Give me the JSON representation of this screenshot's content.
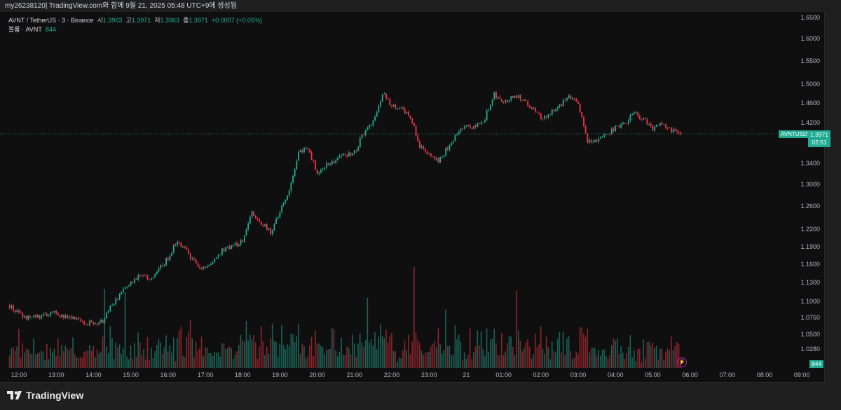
{
  "topbar": {
    "text": "my26238120| TradingView.com와 함께 9월 21, 2025 05:48 UTC+9에 생성됨"
  },
  "legend": {
    "symbol": "AVNT / TetherUS · 3 · Binance",
    "open_label": "시",
    "open": "1.3963",
    "high_label": "고",
    "high": "1.3971",
    "low_label": "저",
    "low": "1.3963",
    "close_label": "종",
    "close": "1.3971",
    "change": "+0.0007 (+0.05%)",
    "volume_label": "볼륨 · AVNT",
    "volume": "844"
  },
  "badges": {
    "symbol": "AVNTUSDT",
    "price": "1.3971",
    "countdown": "02:51",
    "volume": "844"
  },
  "colors": {
    "up": "#22ab94",
    "down": "#f23645",
    "background": "#0f0f0f"
  },
  "price_axis": [
    "1.6500",
    "1.6000",
    "1.5500",
    "1.5000",
    "1.4600",
    "1.4200",
    "1.3400",
    "1.3000",
    "1.2600",
    "1.2200",
    "1.1900",
    "1.1600",
    "1.1300",
    "1.1000",
    "1.0750",
    "1.0500",
    "1.0280"
  ],
  "time_axis": [
    "12:00",
    "13:00",
    "14:00",
    "15:00",
    "16:00",
    "17:00",
    "18:00",
    "19:00",
    "20:00",
    "21:00",
    "22:00",
    "23:00",
    "21",
    "01:00",
    "02:00",
    "03:00",
    "04:00",
    "05:00",
    "06:00",
    "07:00",
    "08:00",
    "09:00"
  ],
  "footer": {
    "brand": "TradingView"
  },
  "chart_data": {
    "type": "candlestick",
    "interval": "3m",
    "closes_15m": [
      1.094,
      1.08,
      1.074,
      1.076,
      1.079,
      1.082,
      1.075,
      1.072,
      1.068,
      1.066,
      1.07,
      1.095,
      1.115,
      1.13,
      1.14,
      1.138,
      1.15,
      1.17,
      1.2,
      1.18,
      1.16,
      1.15,
      1.17,
      1.185,
      1.19,
      1.2,
      1.25,
      1.23,
      1.215,
      1.25,
      1.29,
      1.36,
      1.37,
      1.32,
      1.335,
      1.345,
      1.355,
      1.36,
      1.4,
      1.42,
      1.48,
      1.455,
      1.45,
      1.43,
      1.375,
      1.36,
      1.345,
      1.37,
      1.395,
      1.415,
      1.41,
      1.43,
      1.48,
      1.46,
      1.475,
      1.47,
      1.45,
      1.43,
      1.44,
      1.455,
      1.47,
      1.46,
      1.385,
      1.38,
      1.395,
      1.41,
      1.415,
      1.44,
      1.425,
      1.405,
      1.42,
      1.405,
      1.3971
    ],
    "last_price": 1.3971,
    "y_scale": "log"
  }
}
